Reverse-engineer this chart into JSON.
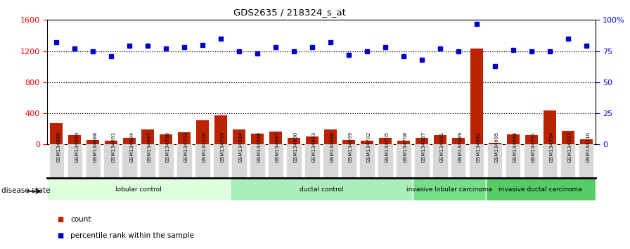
{
  "title": "GDS2635 / 218324_s_at",
  "samples": [
    "GSM134586",
    "GSM134589",
    "GSM134688",
    "GSM134691",
    "GSM134694",
    "GSM134697",
    "GSM134700",
    "GSM134703",
    "GSM134706",
    "GSM134709",
    "GSM134584",
    "GSM134588",
    "GSM134687",
    "GSM134690",
    "GSM134693",
    "GSM134696",
    "GSM134699",
    "GSM134702",
    "GSM134705",
    "GSM134708",
    "GSM134587",
    "GSM134591",
    "GSM134689",
    "GSM134692",
    "GSM134695",
    "GSM134698",
    "GSM134701",
    "GSM134704",
    "GSM134707",
    "GSM134710"
  ],
  "counts": [
    270,
    120,
    55,
    45,
    80,
    195,
    130,
    160,
    310,
    370,
    190,
    135,
    170,
    80,
    100,
    190,
    60,
    45,
    80,
    50,
    80,
    120,
    80,
    1230,
    20,
    130,
    120,
    440,
    175,
    70
  ],
  "percentile_ranks": [
    82,
    77,
    75,
    71,
    79,
    79,
    77,
    78,
    80,
    85,
    75,
    73,
    78,
    75,
    78,
    82,
    72,
    75,
    78,
    71,
    68,
    77,
    75,
    97,
    63,
    76,
    75,
    75,
    85,
    79
  ],
  "groups": [
    {
      "label": "lobular control",
      "start": 0,
      "end": 10,
      "color": "#ddffdd"
    },
    {
      "label": "ductal control",
      "start": 10,
      "end": 20,
      "color": "#aaeebb"
    },
    {
      "label": "invasive lobular carcinoma",
      "start": 20,
      "end": 24,
      "color": "#77dd88"
    },
    {
      "label": "invasive ductal carcinoma",
      "start": 24,
      "end": 30,
      "color": "#55cc66"
    }
  ],
  "ylim_left": [
    0,
    1600
  ],
  "ylim_right": [
    0,
    100
  ],
  "yticks_left": [
    0,
    400,
    800,
    1200,
    1600
  ],
  "yticks_right": [
    0,
    25,
    50,
    75,
    100
  ],
  "bar_color": "#bb2200",
  "dot_color": "#0000cc",
  "bg_color": "#ffffff",
  "tick_bg_color": "#d8d8d8",
  "disease_state_label": "disease state",
  "legend_count": "count",
  "legend_percentile": "percentile rank within the sample"
}
